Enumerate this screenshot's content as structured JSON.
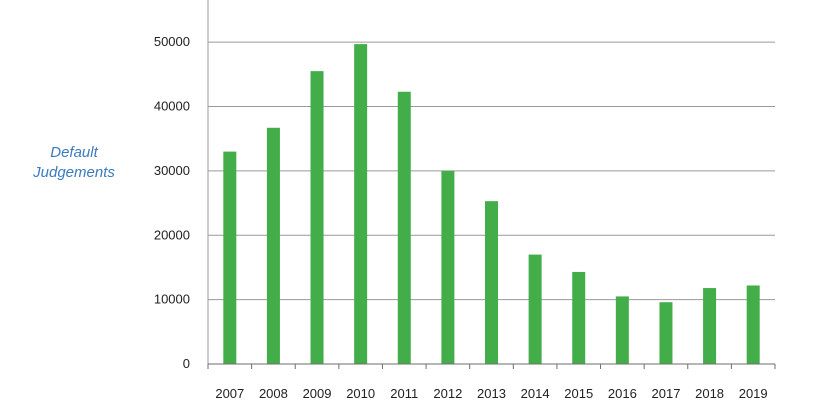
{
  "chart_data": {
    "type": "bar",
    "title": "",
    "xlabel": "",
    "ylabel_lines": [
      "Default",
      "Judgements"
    ],
    "categories": [
      "2007",
      "2008",
      "2009",
      "2010",
      "2011",
      "2012",
      "2013",
      "2014",
      "2015",
      "2016",
      "2017",
      "2018",
      "2019"
    ],
    "values": [
      33000,
      36700,
      45500,
      49700,
      42300,
      30000,
      25300,
      17000,
      14300,
      10500,
      9600,
      11800,
      12200
    ],
    "ylim": [
      0,
      55000
    ],
    "yticks": [
      "0",
      "10000",
      "20000",
      "30000",
      "40000",
      "50000"
    ],
    "ytick_values": [
      0,
      10000,
      20000,
      30000,
      40000,
      50000
    ],
    "grid": true,
    "bar_color": "#43ad49",
    "grid_color": "#9a9a9a",
    "ylabel_color": "#3a7bbf"
  }
}
